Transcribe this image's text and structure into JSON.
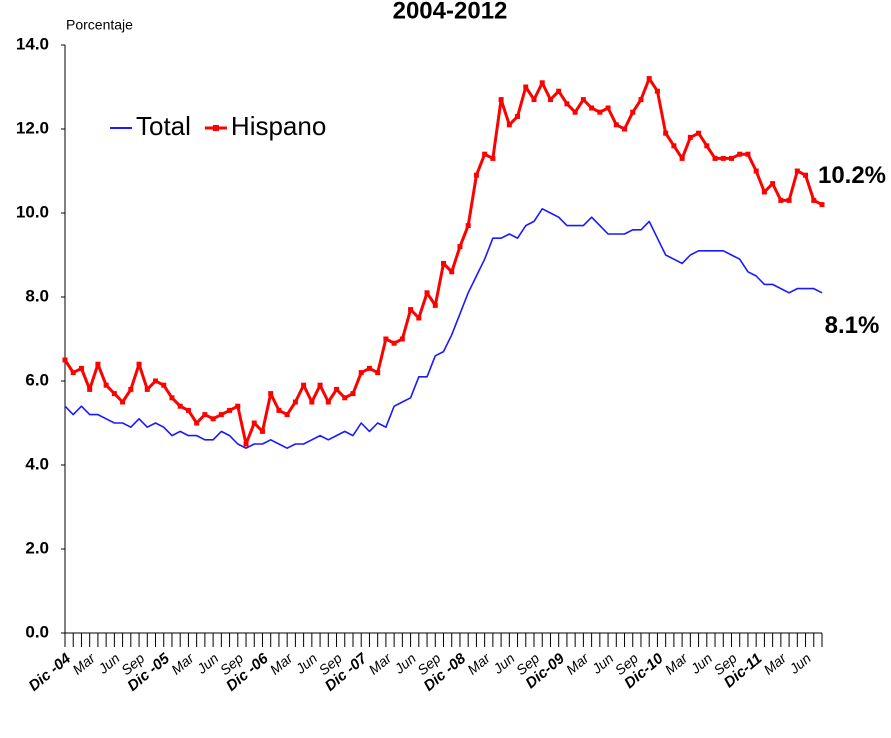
{
  "chart_data": {
    "type": "line",
    "title": "2004-2012",
    "y_label": "Porcentaje",
    "categories": [
      "Dic -04",
      null,
      null,
      "Mar",
      null,
      null,
      "Jun",
      null,
      null,
      "Sep",
      null,
      null,
      "Dic -05",
      null,
      null,
      "Mar",
      null,
      null,
      "Jun",
      null,
      null,
      "Sep",
      null,
      null,
      "Dic -06",
      null,
      null,
      "Mar",
      null,
      null,
      "Jun",
      null,
      null,
      "Sep",
      null,
      null,
      "Dic -07",
      null,
      null,
      "Mar",
      null,
      null,
      "Jun",
      null,
      null,
      "Sep",
      null,
      null,
      "Dic -08",
      null,
      null,
      "Mar",
      null,
      null,
      "Jun",
      null,
      null,
      "Sep",
      null,
      null,
      "Dic-09",
      null,
      null,
      "Mar",
      null,
      null,
      "Jun",
      null,
      null,
      "Sep",
      null,
      null,
      "Dic-10",
      null,
      null,
      "Mar",
      null,
      null,
      "Jun",
      null,
      null,
      "Sep",
      null,
      null,
      "Dic-11",
      null,
      null,
      "Mar",
      null,
      null,
      "Jun",
      null,
      null
    ],
    "series": [
      {
        "name": "Total",
        "color": "#1a1aff",
        "values": [
          5.4,
          5.2,
          5.4,
          5.2,
          5.2,
          5.1,
          5.0,
          5.0,
          4.9,
          5.1,
          4.9,
          5.0,
          4.9,
          4.7,
          4.8,
          4.7,
          4.7,
          4.6,
          4.6,
          4.8,
          4.7,
          4.5,
          4.4,
          4.5,
          4.5,
          4.6,
          4.5,
          4.4,
          4.5,
          4.5,
          4.6,
          4.7,
          4.6,
          4.7,
          4.8,
          4.7,
          5.0,
          4.8,
          5.0,
          4.9,
          5.4,
          5.5,
          5.6,
          6.1,
          6.1,
          6.6,
          6.7,
          7.1,
          7.6,
          8.1,
          8.5,
          8.9,
          9.4,
          9.4,
          9.5,
          9.4,
          9.7,
          9.8,
          10.1,
          10.0,
          9.9,
          9.7,
          9.7,
          9.7,
          9.9,
          9.7,
          9.5,
          9.5,
          9.5,
          9.6,
          9.6,
          9.8,
          9.4,
          9.0,
          8.9,
          8.8,
          9.0,
          9.1,
          9.1,
          9.1,
          9.1,
          9.0,
          8.9,
          8.6,
          8.5,
          8.3,
          8.3,
          8.2,
          8.1,
          8.2,
          8.2,
          8.2,
          8.1
        ],
        "value_labels": [
          null,
          null,
          null,
          null,
          null,
          null,
          null,
          null,
          null,
          null,
          null,
          null,
          null,
          null,
          null,
          null,
          null,
          null,
          null,
          null,
          null,
          null,
          null,
          null,
          null,
          null,
          null,
          null,
          null,
          null,
          null,
          null,
          null,
          null,
          null,
          null,
          null,
          null,
          null,
          null,
          null,
          null,
          null,
          null,
          null,
          null,
          null,
          null,
          null,
          null,
          null,
          null,
          null,
          null,
          null,
          null,
          null,
          null,
          null,
          null,
          null,
          null,
          null,
          null,
          null,
          null,
          null,
          null,
          null,
          null,
          null,
          null,
          null,
          null,
          null,
          null,
          null,
          null,
          null,
          null,
          null,
          null,
          null,
          null,
          null,
          null,
          null,
          null,
          null,
          null,
          null,
          null,
          "8.1%"
        ]
      },
      {
        "name": "Hispano",
        "color": "#ff0000",
        "values": [
          6.5,
          6.2,
          6.3,
          5.8,
          6.4,
          5.9,
          5.7,
          5.5,
          5.8,
          6.4,
          5.8,
          6.0,
          5.9,
          5.6,
          5.4,
          5.3,
          5.0,
          5.2,
          5.1,
          5.2,
          5.3,
          5.4,
          4.5,
          5.0,
          4.8,
          5.7,
          5.3,
          5.2,
          5.5,
          5.9,
          5.5,
          5.9,
          5.5,
          5.8,
          5.6,
          5.7,
          6.2,
          6.3,
          6.2,
          7.0,
          6.9,
          7.0,
          7.7,
          7.5,
          8.1,
          7.8,
          8.8,
          8.6,
          9.2,
          9.7,
          10.9,
          11.4,
          11.3,
          12.7,
          12.1,
          12.3,
          13.0,
          12.7,
          13.1,
          12.7,
          12.9,
          12.6,
          12.4,
          12.7,
          12.5,
          12.4,
          12.5,
          12.1,
          12.0,
          12.4,
          12.7,
          13.2,
          12.9,
          11.9,
          11.6,
          11.3,
          11.8,
          11.9,
          11.6,
          11.3,
          11.3,
          11.3,
          11.4,
          11.4,
          11.0,
          10.5,
          10.7,
          10.3,
          10.3,
          11.0,
          10.9,
          10.3,
          10.2
        ],
        "value_labels": [
          null,
          null,
          null,
          null,
          null,
          null,
          null,
          null,
          null,
          null,
          null,
          null,
          null,
          null,
          null,
          null,
          null,
          null,
          null,
          null,
          null,
          null,
          null,
          null,
          null,
          null,
          null,
          null,
          null,
          null,
          null,
          null,
          null,
          null,
          null,
          null,
          null,
          null,
          null,
          null,
          null,
          null,
          null,
          null,
          null,
          null,
          null,
          null,
          null,
          null,
          null,
          null,
          null,
          null,
          null,
          null,
          null,
          null,
          null,
          null,
          null,
          null,
          null,
          null,
          null,
          null,
          null,
          null,
          null,
          null,
          null,
          null,
          null,
          null,
          null,
          null,
          null,
          null,
          null,
          null,
          null,
          null,
          null,
          null,
          null,
          null,
          null,
          null,
          null,
          null,
          null,
          null,
          "10.2%"
        ]
      }
    ],
    "ylim": [
      0,
      14
    ],
    "yticks": [
      {
        "value": 0,
        "label": "0.0"
      },
      {
        "value": 2,
        "label": "2.0"
      },
      {
        "value": 4,
        "label": "4.0"
      },
      {
        "value": 6,
        "label": "6.0"
      },
      {
        "value": 8,
        "label": "8.0"
      },
      {
        "value": 10,
        "label": "10.0"
      },
      {
        "value": 12,
        "label": "12.0"
      },
      {
        "value": 14,
        "label": "14.0"
      }
    ],
    "legend": "upper left",
    "grid": false
  }
}
